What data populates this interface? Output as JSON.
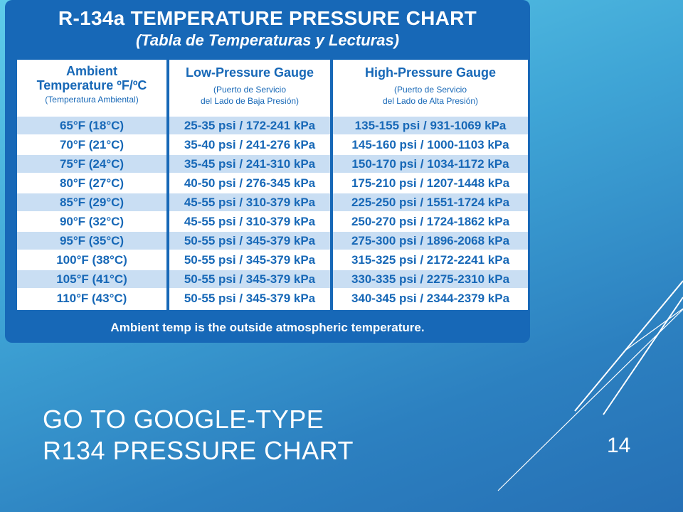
{
  "chart": {
    "title": "R-134a TEMPERATURE PRESSURE CHART",
    "subtitle": "(Tabla de Temperaturas y Lecturas)",
    "columns": [
      {
        "title1": "Ambient",
        "title2": "Temperature ºF/ºC",
        "sub": "(Temperatura Ambiental)"
      },
      {
        "title1": "Low-Pressure Gauge",
        "title2": "",
        "sub1": "(Puerto de Servicio",
        "sub2": "del Lado de Baja Presión)"
      },
      {
        "title1": "High-Pressure Gauge",
        "title2": "",
        "sub1": "(Puerto de Servicio",
        "sub2": "del Lado de Alta Presión)"
      }
    ],
    "rows": [
      [
        "65°F (18°C)",
        "25-35 psi / 172-241 kPa",
        "135-155 psi / 931-1069 kPa"
      ],
      [
        "70°F (21°C)",
        "35-40 psi / 241-276 kPa",
        "145-160 psi / 1000-1103 kPa"
      ],
      [
        "75°F (24°C)",
        "35-45 psi / 241-310 kPa",
        "150-170 psi / 1034-1172 kPa"
      ],
      [
        "80°F (27°C)",
        "40-50 psi / 276-345 kPa",
        "175-210 psi / 1207-1448 kPa"
      ],
      [
        "85°F (29°C)",
        "45-55 psi / 310-379 kPa",
        "225-250 psi / 1551-1724 kPa"
      ],
      [
        "90°F (32°C)",
        "45-55 psi / 310-379 kPa",
        "250-270 psi / 1724-1862 kPa"
      ],
      [
        "95°F (35°C)",
        "50-55 psi / 345-379 kPa",
        "275-300 psi / 1896-2068 kPa"
      ],
      [
        "100°F (38°C)",
        "50-55 psi / 345-379 kPa",
        "315-325 psi / 2172-2241 kPa"
      ],
      [
        "105°F (41°C)",
        "50-55 psi / 345-379 kPa",
        "330-335 psi / 2275-2310 kPa"
      ],
      [
        "110°F (43°C)",
        "50-55 psi / 345-379 kPa",
        "340-345 psi / 2344-2379 kPa"
      ]
    ],
    "footnote": "Ambient temp is the outside atmospheric temperature."
  },
  "slide": {
    "title_line1": "GO TO GOOGLE-TYPE",
    "title_line2": "R134 PRESSURE CHART",
    "page_number": "14"
  },
  "colors": {
    "card_blue": "#1768b7",
    "row_shade": "#c9def3",
    "text_white": "#ffffff"
  }
}
